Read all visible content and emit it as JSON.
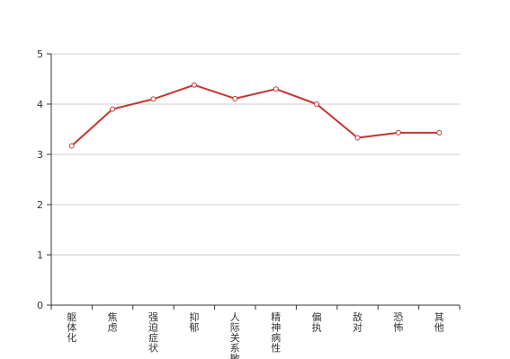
{
  "chart_data": {
    "type": "line",
    "categories": [
      "躯体化",
      "焦虑",
      "强迫症状",
      "抑郁",
      "人际关系敏感",
      "精神病性",
      "偏执",
      "敌对",
      "恐怖",
      "其他"
    ],
    "series": [
      {
        "values": [
          3.17,
          3.9,
          4.1,
          4.38,
          4.11,
          4.3,
          4.0,
          3.33,
          3.43,
          3.43
        ]
      }
    ],
    "yticks": [
      0,
      1,
      2,
      3,
      4,
      5
    ],
    "ylim": [
      0,
      5
    ],
    "grid": true,
    "title": "",
    "xlabel": "",
    "ylabel": "",
    "colors": {
      "line": "#c23531",
      "grid": "#cccccc",
      "axis": "#333333"
    }
  }
}
